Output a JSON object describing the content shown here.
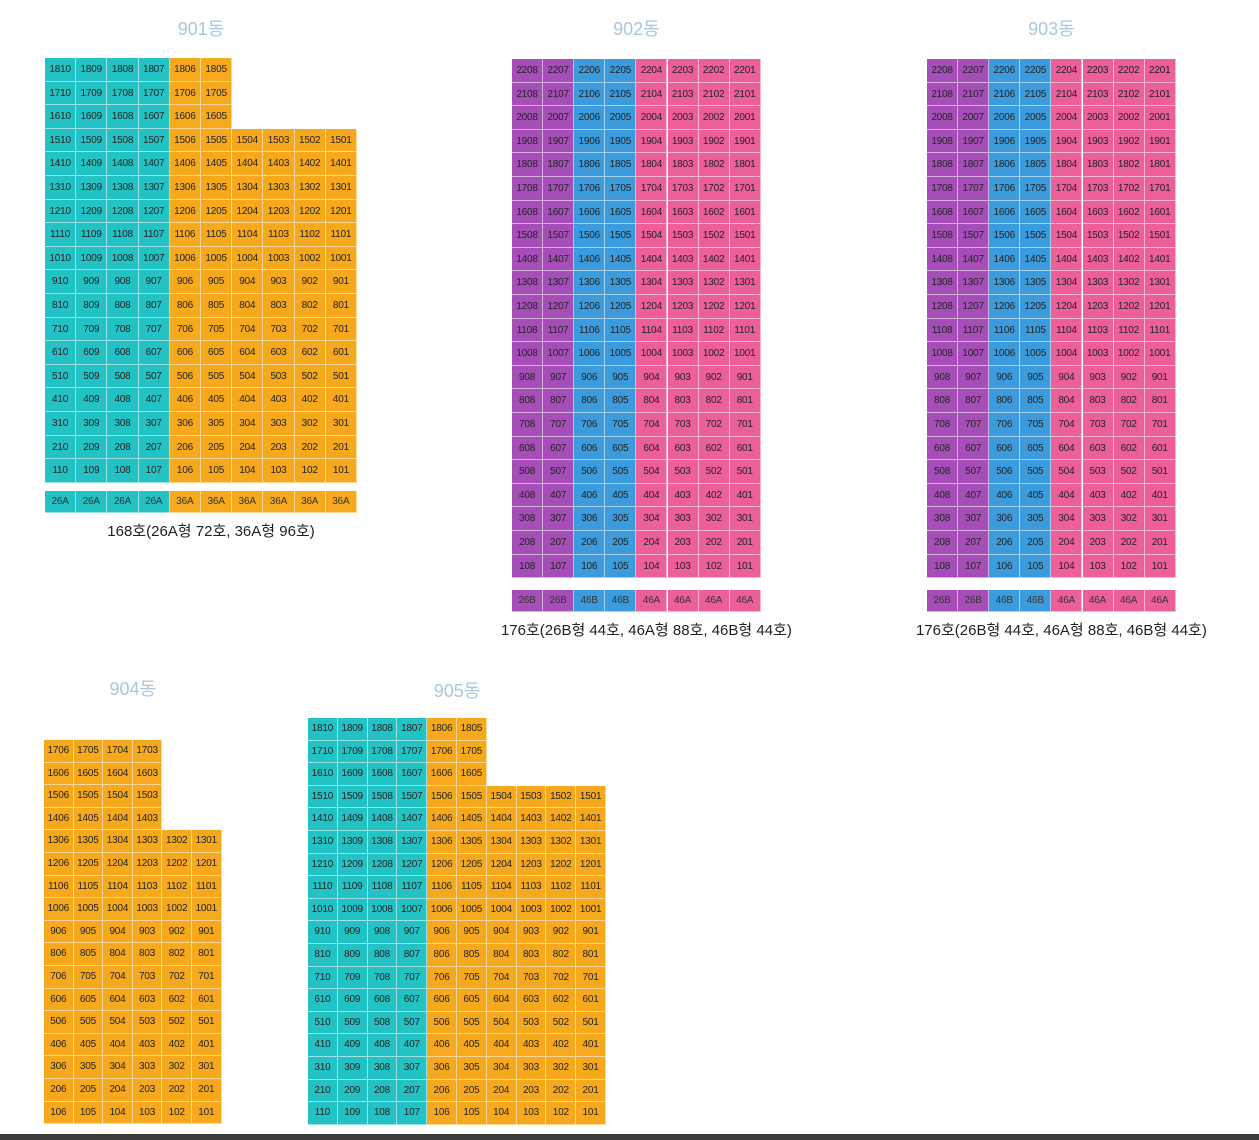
{
  "colors": {
    "teal": "#23c2c4",
    "orange": "#f6a91c",
    "purple": "#a64eb8",
    "blue": "#3b9bdc",
    "pink": "#ec5f98",
    "title": "#a9c6dd"
  },
  "buildings": [
    {
      "id": "901",
      "title": "901동",
      "floors_top": 18,
      "bands": [
        {
          "color": "teal",
          "units": [
            "10",
            "09",
            "08",
            "07"
          ]
        },
        {
          "color": "orange",
          "units": [
            "06",
            "05",
            "04",
            "03",
            "02",
            "01"
          ]
        }
      ],
      "floor_limits": [
        {
          "min_floor": 16,
          "units": [
            "10",
            "09",
            "08",
            "07",
            "06",
            "05"
          ]
        }
      ],
      "types": [
        {
          "label": "26A",
          "color": "teal"
        },
        {
          "label": "26A",
          "color": "teal"
        },
        {
          "label": "26A",
          "color": "teal"
        },
        {
          "label": "26A",
          "color": "teal"
        },
        {
          "label": "36A",
          "color": "orange"
        },
        {
          "label": "36A",
          "color": "orange"
        },
        {
          "label": "36A",
          "color": "orange"
        },
        {
          "label": "36A",
          "color": "orange"
        },
        {
          "label": "36A",
          "color": "orange"
        },
        {
          "label": "36A",
          "color": "orange"
        }
      ],
      "summary": "168호(26A형 72호, 36A형 96호)"
    },
    {
      "id": "902",
      "title": "902동",
      "floors_top": 22,
      "bands": [
        {
          "color": "purple",
          "units": [
            "08",
            "07"
          ]
        },
        {
          "color": "blue",
          "units": [
            "06",
            "05"
          ]
        },
        {
          "color": "pink",
          "units": [
            "04",
            "03",
            "02",
            "01"
          ]
        }
      ],
      "floor_limits": [],
      "types": [
        {
          "label": "26B",
          "color": "purple"
        },
        {
          "label": "26B",
          "color": "purple"
        },
        {
          "label": "46B",
          "color": "blue"
        },
        {
          "label": "46B",
          "color": "blue"
        },
        {
          "label": "46A",
          "color": "pink"
        },
        {
          "label": "46A",
          "color": "pink"
        },
        {
          "label": "46A",
          "color": "pink"
        },
        {
          "label": "46A",
          "color": "pink"
        }
      ],
      "summary": "176호(26B형 44호, 46A형 88호, 46B형 44호)"
    },
    {
      "id": "903",
      "title": "903동",
      "floors_top": 22,
      "bands": [
        {
          "color": "purple",
          "units": [
            "08",
            "07"
          ]
        },
        {
          "color": "blue",
          "units": [
            "06",
            "05"
          ]
        },
        {
          "color": "pink",
          "units": [
            "04",
            "03",
            "02",
            "01"
          ]
        }
      ],
      "floor_limits": [],
      "types": [
        {
          "label": "26B",
          "color": "purple"
        },
        {
          "label": "26B",
          "color": "purple"
        },
        {
          "label": "46B",
          "color": "blue"
        },
        {
          "label": "46B",
          "color": "blue"
        },
        {
          "label": "46A",
          "color": "pink"
        },
        {
          "label": "46A",
          "color": "pink"
        },
        {
          "label": "46A",
          "color": "pink"
        },
        {
          "label": "46A",
          "color": "pink"
        }
      ],
      "summary": "176호(26B형 44호, 46A형 88호, 46B형 44호)"
    },
    {
      "id": "904",
      "title": "904동",
      "floors_top": 17,
      "bands": [
        {
          "color": "orange",
          "units": [
            "06",
            "05",
            "04",
            "03",
            "02",
            "01"
          ]
        }
      ],
      "floor_limits": [
        {
          "min_floor": 14,
          "units": [
            "06",
            "05",
            "04",
            "03"
          ]
        }
      ],
      "types": [],
      "summary": ""
    },
    {
      "id": "905",
      "title": "905동",
      "floors_top": 18,
      "bands": [
        {
          "color": "teal",
          "units": [
            "10",
            "09",
            "08",
            "07"
          ]
        },
        {
          "color": "orange",
          "units": [
            "06",
            "05",
            "04",
            "03",
            "02",
            "01"
          ]
        }
      ],
      "floor_limits": [
        {
          "min_floor": 16,
          "units": [
            "10",
            "09",
            "08",
            "07",
            "06",
            "05"
          ]
        }
      ],
      "types": [],
      "summary": ""
    }
  ]
}
